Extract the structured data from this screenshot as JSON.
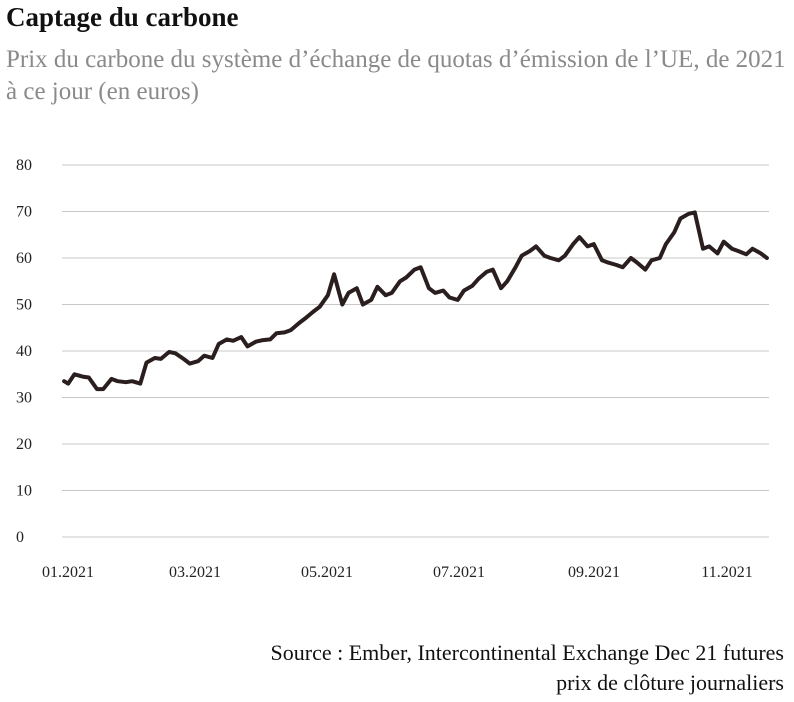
{
  "title": "Captage du carbone",
  "subtitle": "Prix du carbone du système d’échange de quotas d’émission de l’UE, de 2021 à ce jour (en euros)",
  "source": {
    "line1": "Source : Ember, Intercontinental Exchange Dec 21 futures",
    "line2": "prix de clôture journaliers"
  },
  "chart_data": {
    "type": "line",
    "title": "Captage du carbone",
    "subtitle": "Prix du carbone du système d’échange de quotas d’émission de l’UE, de 2021 à ce jour (en euros)",
    "xlabel": "",
    "ylabel": "",
    "ylim": [
      0,
      80
    ],
    "y_ticks": [
      0,
      10,
      20,
      30,
      40,
      50,
      60,
      70,
      80
    ],
    "x_ticks": [
      "01.2021",
      "03.2021",
      "05.2021",
      "07.2021",
      "09.2021",
      "11.2021"
    ],
    "xlim": [
      "2021-01-01",
      "2021-12-10"
    ],
    "grid": "horizontal",
    "line_color": "#2a1e1e",
    "series": [
      {
        "x": [
          "2021-01-02",
          "2021-01-04",
          "2021-01-07",
          "2021-01-11",
          "2021-01-14",
          "2021-01-18",
          "2021-01-21",
          "2021-01-25",
          "2021-01-28",
          "2021-02-01",
          "2021-02-04",
          "2021-02-08",
          "2021-02-11",
          "2021-02-15",
          "2021-02-18",
          "2021-02-22",
          "2021-02-25",
          "2021-03-01",
          "2021-03-04",
          "2021-03-08",
          "2021-03-11",
          "2021-03-15",
          "2021-03-18",
          "2021-03-22",
          "2021-03-25",
          "2021-03-29",
          "2021-04-01",
          "2021-04-05",
          "2021-04-08",
          "2021-04-12",
          "2021-04-15",
          "2021-04-19",
          "2021-04-22",
          "2021-04-26",
          "2021-04-29",
          "2021-05-03",
          "2021-05-06",
          "2021-05-10",
          "2021-05-13",
          "2021-05-17",
          "2021-05-20",
          "2021-05-24",
          "2021-05-27",
          "2021-05-31",
          "2021-06-03",
          "2021-06-07",
          "2021-06-10",
          "2021-06-14",
          "2021-06-17",
          "2021-06-21",
          "2021-06-24",
          "2021-06-28",
          "2021-07-01",
          "2021-07-05",
          "2021-07-08",
          "2021-07-12",
          "2021-07-15",
          "2021-07-19",
          "2021-07-22",
          "2021-07-26",
          "2021-07-29",
          "2021-08-02",
          "2021-08-05",
          "2021-08-09",
          "2021-08-12",
          "2021-08-16",
          "2021-08-19",
          "2021-08-23",
          "2021-08-26",
          "2021-08-30",
          "2021-09-02",
          "2021-09-06",
          "2021-09-09",
          "2021-09-13",
          "2021-09-16",
          "2021-09-20",
          "2021-09-23",
          "2021-09-27",
          "2021-09-30",
          "2021-10-04",
          "2021-10-07",
          "2021-10-11",
          "2021-10-14",
          "2021-10-18",
          "2021-10-21",
          "2021-10-25",
          "2021-10-28",
          "2021-11-01",
          "2021-11-04",
          "2021-11-08",
          "2021-11-11",
          "2021-11-15",
          "2021-11-18",
          "2021-11-22",
          "2021-11-25",
          "2021-11-29",
          "2021-12-02",
          "2021-12-06",
          "2021-12-09"
        ],
        "y": [
          33.5,
          33,
          35,
          34.5,
          34.3,
          31.8,
          31.8,
          34,
          33.5,
          33.3,
          33.5,
          33,
          37.5,
          38.5,
          38.3,
          39.8,
          39.5,
          38.3,
          37.3,
          37.8,
          39,
          38.5,
          41.5,
          42.5,
          42.2,
          43,
          41,
          42,
          42.3,
          42.5,
          43.8,
          44,
          44.5,
          46,
          47,
          48.5,
          49.5,
          52,
          56.5,
          50,
          52.5,
          53.5,
          50,
          51,
          53.8,
          52,
          52.5,
          55,
          55.8,
          57.5,
          58,
          53.5,
          52.5,
          53,
          51.5,
          51,
          53,
          54,
          55.5,
          57,
          57.5,
          53.5,
          55,
          58,
          60.5,
          61.5,
          62.5,
          60.5,
          60,
          59.5,
          60.5,
          63,
          64.5,
          62.5,
          63,
          59.5,
          59,
          58.5,
          58,
          60,
          59,
          57.5,
          59.5,
          60,
          63,
          65.5,
          68.5,
          69.5,
          69.8,
          62,
          62.5,
          61,
          63.5,
          62,
          61.5,
          60.8,
          62,
          61,
          60
        ]
      }
    ]
  }
}
